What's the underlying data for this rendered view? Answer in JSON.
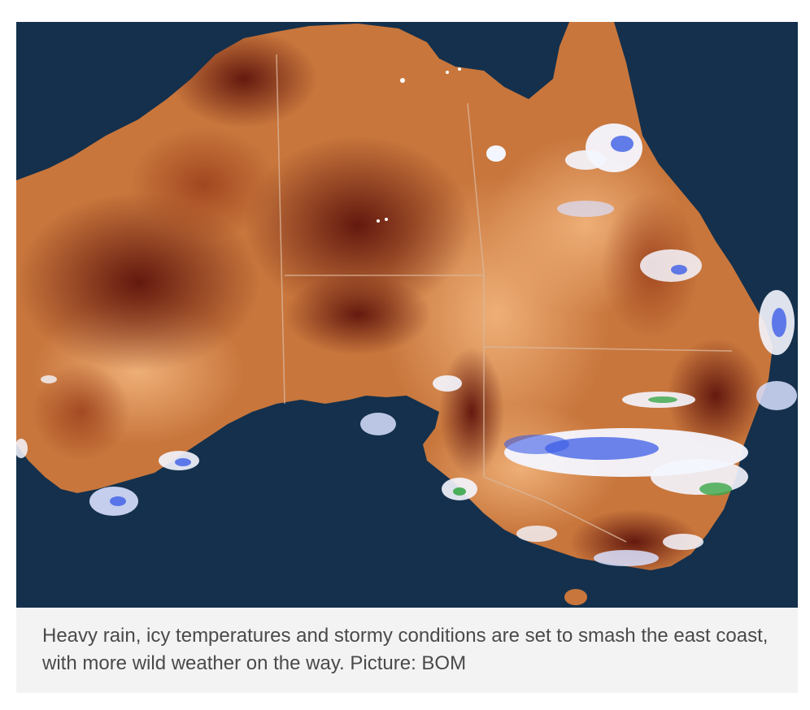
{
  "map": {
    "colors": {
      "ocean": "#14304c",
      "land_light": "#e2a06a",
      "land_mid": "#c8763c",
      "land_dark": "#6b1a10",
      "border": "#d9b79c",
      "rain_white": "#f4f6ff",
      "rain_blue": "#3c5ee6",
      "rain_green": "#3aa84a"
    },
    "layers": [
      "satellite-temperature",
      "rain-radar"
    ]
  },
  "caption": {
    "text": "Heavy rain, icy temperatures and stormy conditions are set to smash the east coast, with more wild weather on the way. Picture: BOM"
  }
}
